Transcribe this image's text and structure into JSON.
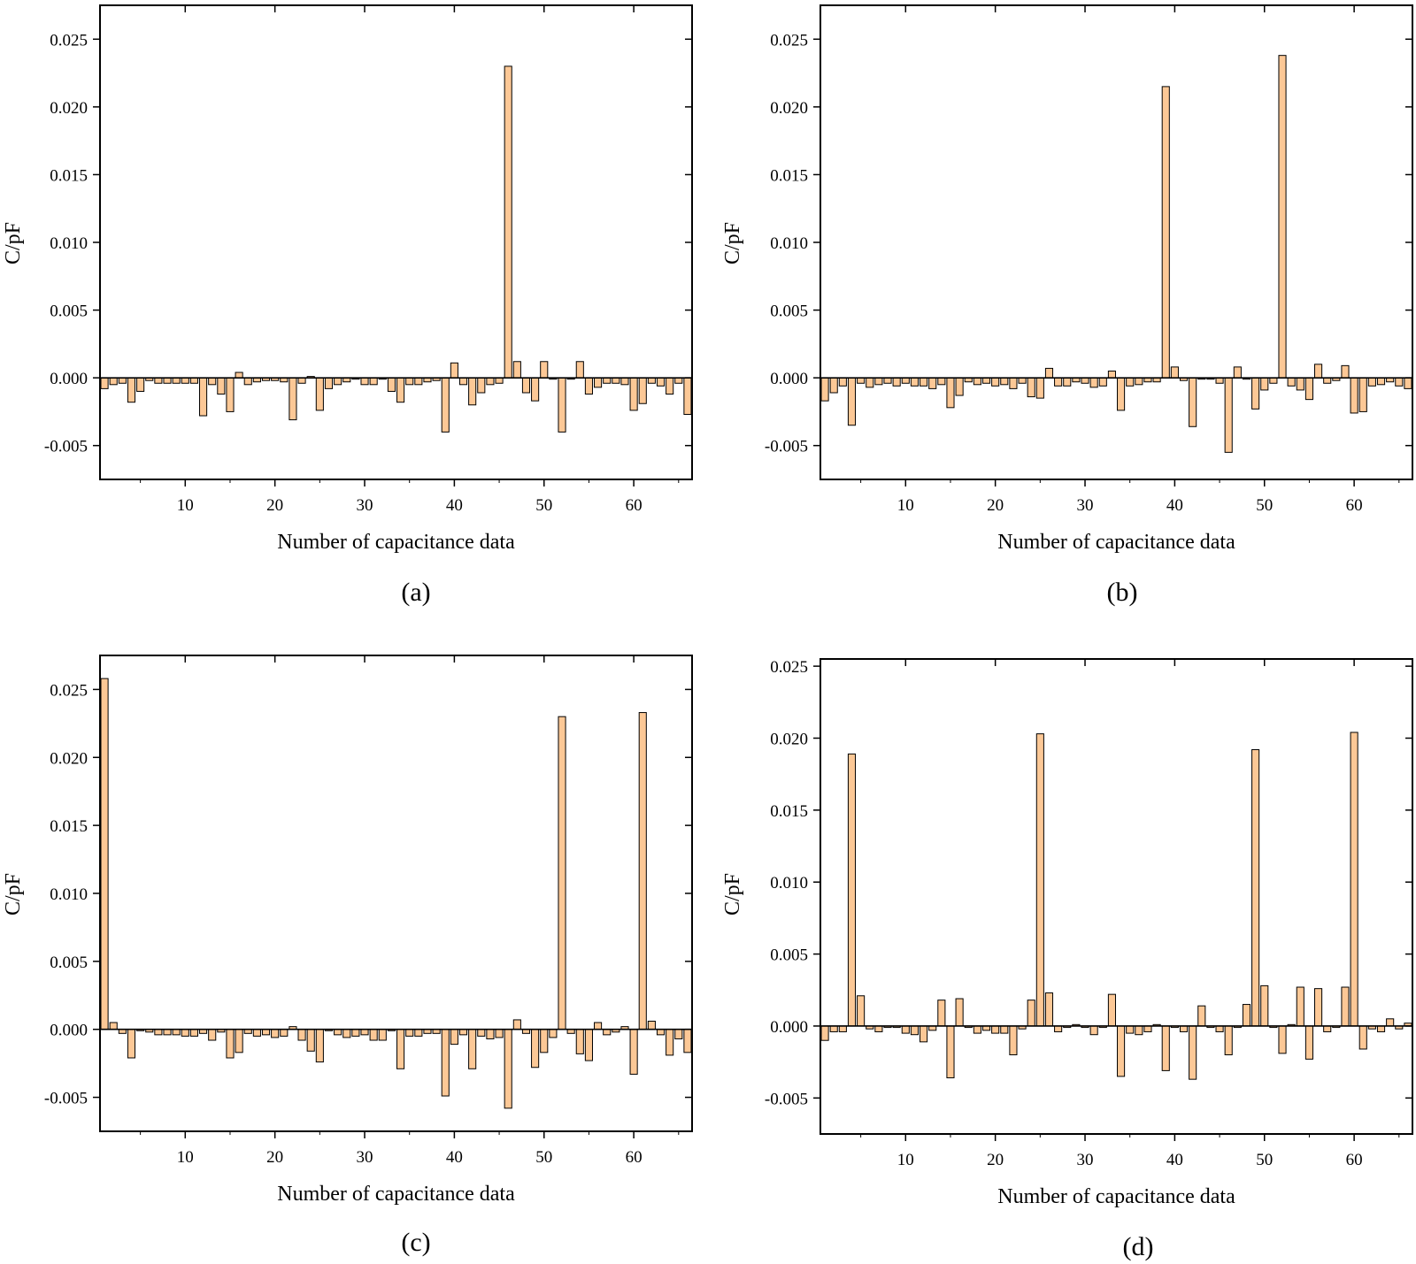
{
  "figure": {
    "panels": [
      "(a)",
      "(b)",
      "(c)",
      "(d)"
    ]
  },
  "chart_data": [
    {
      "type": "bar",
      "panel": "(a)",
      "xlabel": "Number of capacitance data",
      "ylabel": "C/pF",
      "xlim": [
        0.5,
        66.5
      ],
      "ylim": [
        -0.0075,
        0.0275
      ],
      "xticks": [
        10,
        20,
        30,
        40,
        50,
        60
      ],
      "yticks": [
        -0.005,
        0.0,
        0.005,
        0.01,
        0.015,
        0.02,
        0.025
      ],
      "ytick_labels": [
        "-0.005",
        "0.000",
        "0.005",
        "0.010",
        "0.015",
        "0.020",
        "0.025"
      ],
      "bar_color": "#fcc896",
      "grid": false,
      "x": [
        1,
        2,
        3,
        4,
        5,
        6,
        7,
        8,
        9,
        10,
        11,
        12,
        13,
        14,
        15,
        16,
        17,
        18,
        19,
        20,
        21,
        22,
        23,
        24,
        25,
        26,
        27,
        28,
        29,
        30,
        31,
        32,
        33,
        34,
        35,
        36,
        37,
        38,
        39,
        40,
        41,
        42,
        43,
        44,
        45,
        46,
        47,
        48,
        49,
        50,
        51,
        52,
        53,
        54,
        55,
        56,
        57,
        58,
        59,
        60,
        61,
        62,
        63,
        64,
        65,
        66
      ],
      "values": [
        -0.0008,
        -0.0005,
        -0.0004,
        -0.0018,
        -0.001,
        -0.0002,
        -0.0004,
        -0.0004,
        -0.0004,
        -0.0004,
        -0.0004,
        -0.0028,
        -0.0005,
        -0.0012,
        -0.0025,
        0.0004,
        -0.0005,
        -0.0003,
        -0.0002,
        -0.0002,
        -0.0003,
        -0.0031,
        -0.0004,
        0.0001,
        -0.0024,
        -0.0008,
        -0.0005,
        -0.0003,
        -0.0001,
        -0.0005,
        -0.0005,
        -0.0001,
        -0.001,
        -0.0018,
        -0.0005,
        -0.0005,
        -0.0003,
        -0.0002,
        -0.004,
        0.0011,
        -0.0005,
        -0.002,
        -0.0011,
        -0.0005,
        -0.0004,
        0.023,
        0.0012,
        -0.0011,
        -0.0017,
        0.0012,
        -0.0001,
        -0.004,
        -0.0001,
        0.0012,
        -0.0012,
        -0.0007,
        -0.0004,
        -0.0004,
        -0.0005,
        -0.0024,
        -0.0019,
        -0.0004,
        -0.0006,
        -0.0012,
        -0.0004,
        -0.0027
      ]
    },
    {
      "type": "bar",
      "panel": "(b)",
      "xlabel": "Number of capacitance data",
      "ylabel": "C/pF",
      "xlim": [
        0.5,
        66.5
      ],
      "ylim": [
        -0.0075,
        0.0275
      ],
      "xticks": [
        10,
        20,
        30,
        40,
        50,
        60
      ],
      "yticks": [
        -0.005,
        0.0,
        0.005,
        0.01,
        0.015,
        0.02,
        0.025
      ],
      "ytick_labels": [
        "-0.005",
        "0.000",
        "0.005",
        "0.010",
        "0.015",
        "0.020",
        "0.025"
      ],
      "bar_color": "#fcc896",
      "grid": false,
      "x": [
        1,
        2,
        3,
        4,
        5,
        6,
        7,
        8,
        9,
        10,
        11,
        12,
        13,
        14,
        15,
        16,
        17,
        18,
        19,
        20,
        21,
        22,
        23,
        24,
        25,
        26,
        27,
        28,
        29,
        30,
        31,
        32,
        33,
        34,
        35,
        36,
        37,
        38,
        39,
        40,
        41,
        42,
        43,
        44,
        45,
        46,
        47,
        48,
        49,
        50,
        51,
        52,
        53,
        54,
        55,
        56,
        57,
        58,
        59,
        60,
        61,
        62,
        63,
        64,
        65,
        66
      ],
      "values": [
        -0.0017,
        -0.0011,
        -0.0006,
        -0.0035,
        -0.0004,
        -0.0007,
        -0.0005,
        -0.0004,
        -0.0006,
        -0.0004,
        -0.0006,
        -0.0006,
        -0.0008,
        -0.0005,
        -0.0022,
        -0.0013,
        -0.0003,
        -0.0005,
        -0.0004,
        -0.0006,
        -0.0005,
        -0.0008,
        -0.0004,
        -0.0014,
        -0.0015,
        0.0007,
        -0.0006,
        -0.0006,
        -0.0003,
        -0.0004,
        -0.0007,
        -0.0006,
        0.0005,
        -0.0024,
        -0.0006,
        -0.0005,
        -0.0003,
        -0.0003,
        0.0215,
        0.0008,
        -0.0002,
        -0.0036,
        -0.0001,
        -0.0001,
        -0.0004,
        -0.0055,
        0.0008,
        -0.0001,
        -0.0023,
        -0.0009,
        -0.0004,
        0.0238,
        -0.0006,
        -0.0009,
        -0.0016,
        0.001,
        -0.0004,
        -0.0002,
        0.0009,
        -0.0026,
        -0.0025,
        -0.0006,
        -0.0005,
        -0.0003,
        -0.0006,
        -0.0008
      ]
    },
    {
      "type": "bar",
      "panel": "(c)",
      "xlabel": "Number of capacitance data",
      "ylabel": "C/pF",
      "xlim": [
        0.5,
        66.5
      ],
      "ylim": [
        -0.0075,
        0.0275
      ],
      "xticks": [
        10,
        20,
        30,
        40,
        50,
        60
      ],
      "yticks": [
        -0.005,
        0.0,
        0.005,
        0.01,
        0.015,
        0.02,
        0.025
      ],
      "ytick_labels": [
        "-0.005",
        "0.000",
        "0.005",
        "0.010",
        "0.015",
        "0.020",
        "0.025"
      ],
      "bar_color": "#fcc896",
      "grid": false,
      "x": [
        1,
        2,
        3,
        4,
        5,
        6,
        7,
        8,
        9,
        10,
        11,
        12,
        13,
        14,
        15,
        16,
        17,
        18,
        19,
        20,
        21,
        22,
        23,
        24,
        25,
        26,
        27,
        28,
        29,
        30,
        31,
        32,
        33,
        34,
        35,
        36,
        37,
        38,
        39,
        40,
        41,
        42,
        43,
        44,
        45,
        46,
        47,
        48,
        49,
        50,
        51,
        52,
        53,
        54,
        55,
        56,
        57,
        58,
        59,
        60,
        61,
        62,
        63,
        64,
        65,
        66
      ],
      "values": [
        0.0258,
        0.0005,
        -0.0003,
        -0.0021,
        -0.0001,
        -0.0002,
        -0.0004,
        -0.0004,
        -0.0004,
        -0.0005,
        -0.0005,
        -0.0003,
        -0.0008,
        -0.0002,
        -0.0021,
        -0.0017,
        -0.0003,
        -0.0005,
        -0.0004,
        -0.0006,
        -0.0005,
        0.0002,
        -0.0008,
        -0.0016,
        -0.0024,
        -0.0001,
        -0.0004,
        -0.0006,
        -0.0005,
        -0.0004,
        -0.0008,
        -0.0008,
        -0.0001,
        -0.0029,
        -0.0005,
        -0.0005,
        -0.0003,
        -0.0003,
        -0.0049,
        -0.0011,
        -0.0004,
        -0.0029,
        -0.0005,
        -0.0007,
        -0.0006,
        -0.0058,
        0.0007,
        -0.0003,
        -0.0028,
        -0.0017,
        -0.0006,
        0.023,
        -0.0003,
        -0.0018,
        -0.0023,
        0.0005,
        -0.0004,
        -0.0002,
        0.0002,
        -0.0033,
        0.0233,
        0.0006,
        -0.0004,
        -0.0019,
        -0.0007,
        -0.0017
      ]
    },
    {
      "type": "bar",
      "panel": "(d)",
      "xlabel": "Number of capacitance data",
      "ylabel": "C/pF",
      "xlim": [
        0.5,
        66.5
      ],
      "ylim": [
        -0.0075,
        0.0255
      ],
      "xticks": [
        10,
        20,
        30,
        40,
        50,
        60
      ],
      "yticks": [
        -0.005,
        0.0,
        0.005,
        0.01,
        0.015,
        0.02,
        0.025
      ],
      "ytick_labels": [
        "-0.005",
        "0.000",
        "0.005",
        "0.010",
        "0.015",
        "0.020",
        "0.025"
      ],
      "bar_color": "#fcc896",
      "grid": false,
      "x": [
        1,
        2,
        3,
        4,
        5,
        6,
        7,
        8,
        9,
        10,
        11,
        12,
        13,
        14,
        15,
        16,
        17,
        18,
        19,
        20,
        21,
        22,
        23,
        24,
        25,
        26,
        27,
        28,
        29,
        30,
        31,
        32,
        33,
        34,
        35,
        36,
        37,
        38,
        39,
        40,
        41,
        42,
        43,
        44,
        45,
        46,
        47,
        48,
        49,
        50,
        51,
        52,
        53,
        54,
        55,
        56,
        57,
        58,
        59,
        60,
        61,
        62,
        63,
        64,
        65,
        66
      ],
      "values": [
        -0.001,
        -0.0004,
        -0.0004,
        0.0189,
        0.0021,
        -0.0002,
        -0.0004,
        -0.0001,
        -0.0001,
        -0.0005,
        -0.0006,
        -0.0011,
        -0.0003,
        0.0018,
        -0.0036,
        0.0019,
        -0.0001,
        -0.0005,
        -0.0003,
        -0.0005,
        -0.0005,
        -0.002,
        -0.0002,
        0.0018,
        0.0203,
        0.0023,
        -0.0004,
        -0.0001,
        0.0001,
        -0.0001,
        -0.0006,
        -0.0001,
        0.0022,
        -0.0035,
        -0.0005,
        -0.0006,
        -0.0004,
        0.0001,
        -0.0031,
        -0.0001,
        -0.0004,
        -0.0037,
        0.0014,
        -0.0001,
        -0.0004,
        -0.002,
        -0.0001,
        0.0015,
        0.0192,
        0.0028,
        -0.0001,
        -0.0019,
        0.0001,
        0.0027,
        -0.0023,
        0.0026,
        -0.0004,
        -0.0001,
        0.0027,
        0.0204,
        -0.0016,
        -0.0002,
        -0.0004,
        0.0005,
        -0.0002,
        0.0002
      ]
    }
  ]
}
